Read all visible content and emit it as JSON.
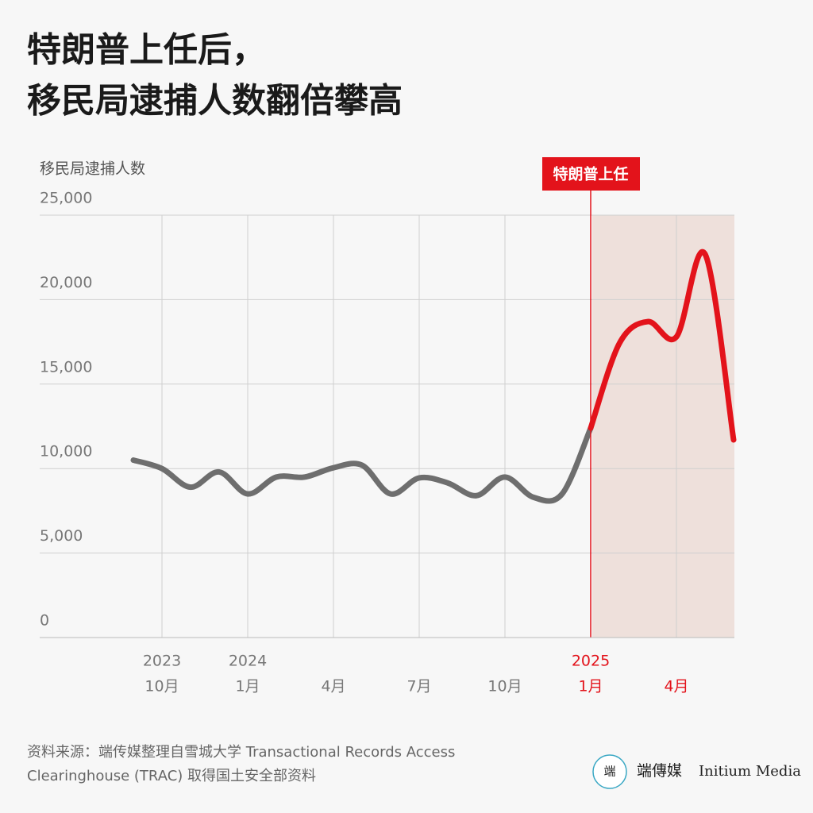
{
  "chart_data": {
    "type": "line",
    "title": [
      "特朗普上任后，",
      "移民局逮捕人数翻倍攀高"
    ],
    "y_label": "移民局逮捕人数",
    "annotation": "特朗普上任",
    "source": [
      "资料来源：端传媒整理自雪城大学 Transactional Records Access",
      "Clearinghouse (TRAC) 取得国土安全部资料"
    ],
    "brand": {
      "logo": "端",
      "name": "端傳媒",
      "name_en": "Initium Media"
    },
    "categories": [
      null,
      "10月",
      null,
      null,
      "1月",
      null,
      null,
      "4月",
      null,
      null,
      "7月",
      null,
      null,
      "10月",
      null,
      null,
      "1月",
      null,
      null,
      "4月",
      null,
      null
    ],
    "category_years": [
      null,
      "2023",
      null,
      null,
      "2024",
      null,
      null,
      null,
      null,
      null,
      null,
      null,
      null,
      null,
      null,
      null,
      "2025",
      null,
      null,
      null,
      null,
      null
    ],
    "series": [
      {
        "color": "#6e6e6e",
        "values": [
          10500,
          10000,
          8900,
          9800,
          8500,
          9500,
          9500,
          10050,
          10200,
          8500,
          9450,
          9150,
          8400,
          9500,
          8300,
          8500,
          12400,
          null,
          null,
          null,
          null,
          null
        ]
      },
      {
        "color": "#e3131b",
        "values": [
          null,
          null,
          null,
          null,
          null,
          null,
          null,
          null,
          null,
          null,
          null,
          null,
          null,
          null,
          null,
          null,
          12400,
          17400,
          18700,
          17800,
          22700,
          11700
        ]
      }
    ],
    "highlight_color": "#eee0db",
    "ylim": [
      0,
      25000
    ],
    "yticks": [
      0,
      {
        "value": 5000,
        "label": "5,000"
      },
      {
        "value": 10000,
        "label": "10,000"
      },
      {
        "value": 15000,
        "label": "15,000"
      },
      {
        "value": 20000,
        "label": "20,000"
      },
      {
        "value": 25000,
        "label": "25,000"
      }
    ],
    "grid": true
  }
}
